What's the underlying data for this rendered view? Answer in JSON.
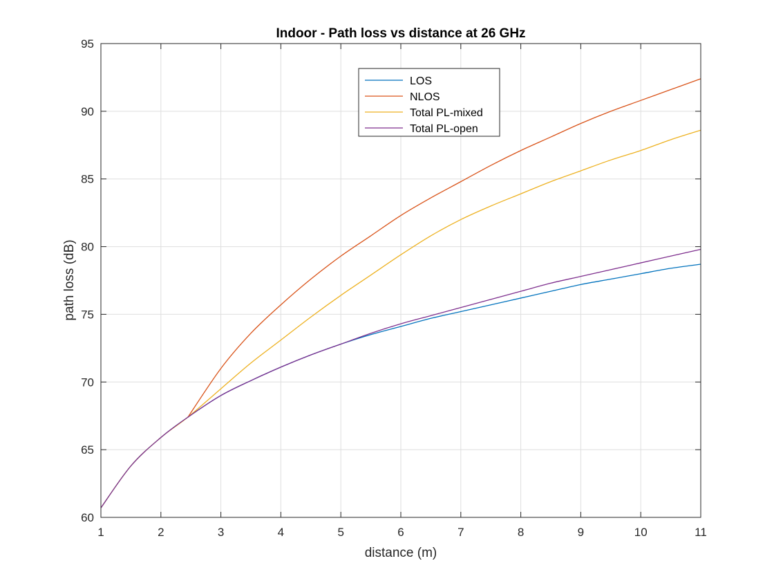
{
  "chart_data": {
    "type": "line",
    "title": "Indoor - Path loss vs distance at 26 GHz",
    "xlabel": "distance (m)",
    "ylabel": "path loss (dB)",
    "xlim": [
      1,
      11
    ],
    "ylim": [
      60,
      95
    ],
    "xticks": [
      1,
      2,
      3,
      4,
      5,
      6,
      7,
      8,
      9,
      10,
      11
    ],
    "yticks": [
      60,
      65,
      70,
      75,
      80,
      85,
      90,
      95
    ],
    "xtick_labels": [
      "1",
      "2",
      "3",
      "4",
      "5",
      "6",
      "7",
      "8",
      "9",
      "10",
      "11"
    ],
    "ytick_labels": [
      "60",
      "65",
      "70",
      "75",
      "80",
      "85",
      "90",
      "95"
    ],
    "grid": true,
    "legend_position": "top-center",
    "series": [
      {
        "name": "LOS",
        "color": "#0072BD",
        "x": [
          1,
          1.5,
          2,
          2.45,
          3,
          3.5,
          4,
          4.5,
          5,
          5.5,
          6,
          6.5,
          7,
          7.5,
          8,
          8.5,
          9,
          9.5,
          10,
          10.5,
          11
        ],
        "y": [
          60.7,
          63.8,
          65.9,
          67.4,
          69.0,
          70.1,
          71.1,
          72.0,
          72.8,
          73.5,
          74.1,
          74.7,
          75.2,
          75.7,
          76.2,
          76.7,
          77.2,
          77.6,
          78.0,
          78.4,
          78.7
        ]
      },
      {
        "name": "NLOS",
        "color": "#D95319",
        "x": [
          2.45,
          3,
          3.5,
          4,
          4.5,
          5,
          5.5,
          6,
          6.5,
          7,
          7.5,
          8,
          8.5,
          9,
          9.5,
          10,
          10.5,
          11
        ],
        "y": [
          67.4,
          71.0,
          73.6,
          75.7,
          77.6,
          79.3,
          80.8,
          82.3,
          83.6,
          84.8,
          86.0,
          87.1,
          88.1,
          89.1,
          90.0,
          90.8,
          91.6,
          92.4
        ]
      },
      {
        "name": "Total PL-mixed",
        "color": "#EDB120",
        "x": [
          1,
          1.5,
          2,
          2.45,
          3,
          3.5,
          4,
          4.5,
          5,
          5.5,
          6,
          6.5,
          7,
          7.5,
          8,
          8.5,
          9,
          9.5,
          10,
          10.5,
          11
        ],
        "y": [
          60.7,
          63.8,
          65.9,
          67.4,
          69.5,
          71.4,
          73.1,
          74.8,
          76.4,
          77.9,
          79.4,
          80.8,
          82.0,
          83.0,
          83.9,
          84.8,
          85.6,
          86.4,
          87.1,
          87.9,
          88.6
        ]
      },
      {
        "name": "Total PL-open",
        "color": "#7E2F8E",
        "x": [
          1,
          1.5,
          2,
          2.45,
          3,
          3.5,
          4,
          4.5,
          5,
          5.5,
          6,
          6.5,
          7,
          7.5,
          8,
          8.5,
          9,
          9.5,
          10,
          10.5,
          11
        ],
        "y": [
          60.7,
          63.8,
          65.9,
          67.4,
          69.0,
          70.1,
          71.1,
          72.0,
          72.8,
          73.6,
          74.3,
          74.9,
          75.5,
          76.1,
          76.7,
          77.3,
          77.8,
          78.3,
          78.8,
          79.3,
          79.8
        ]
      }
    ]
  }
}
